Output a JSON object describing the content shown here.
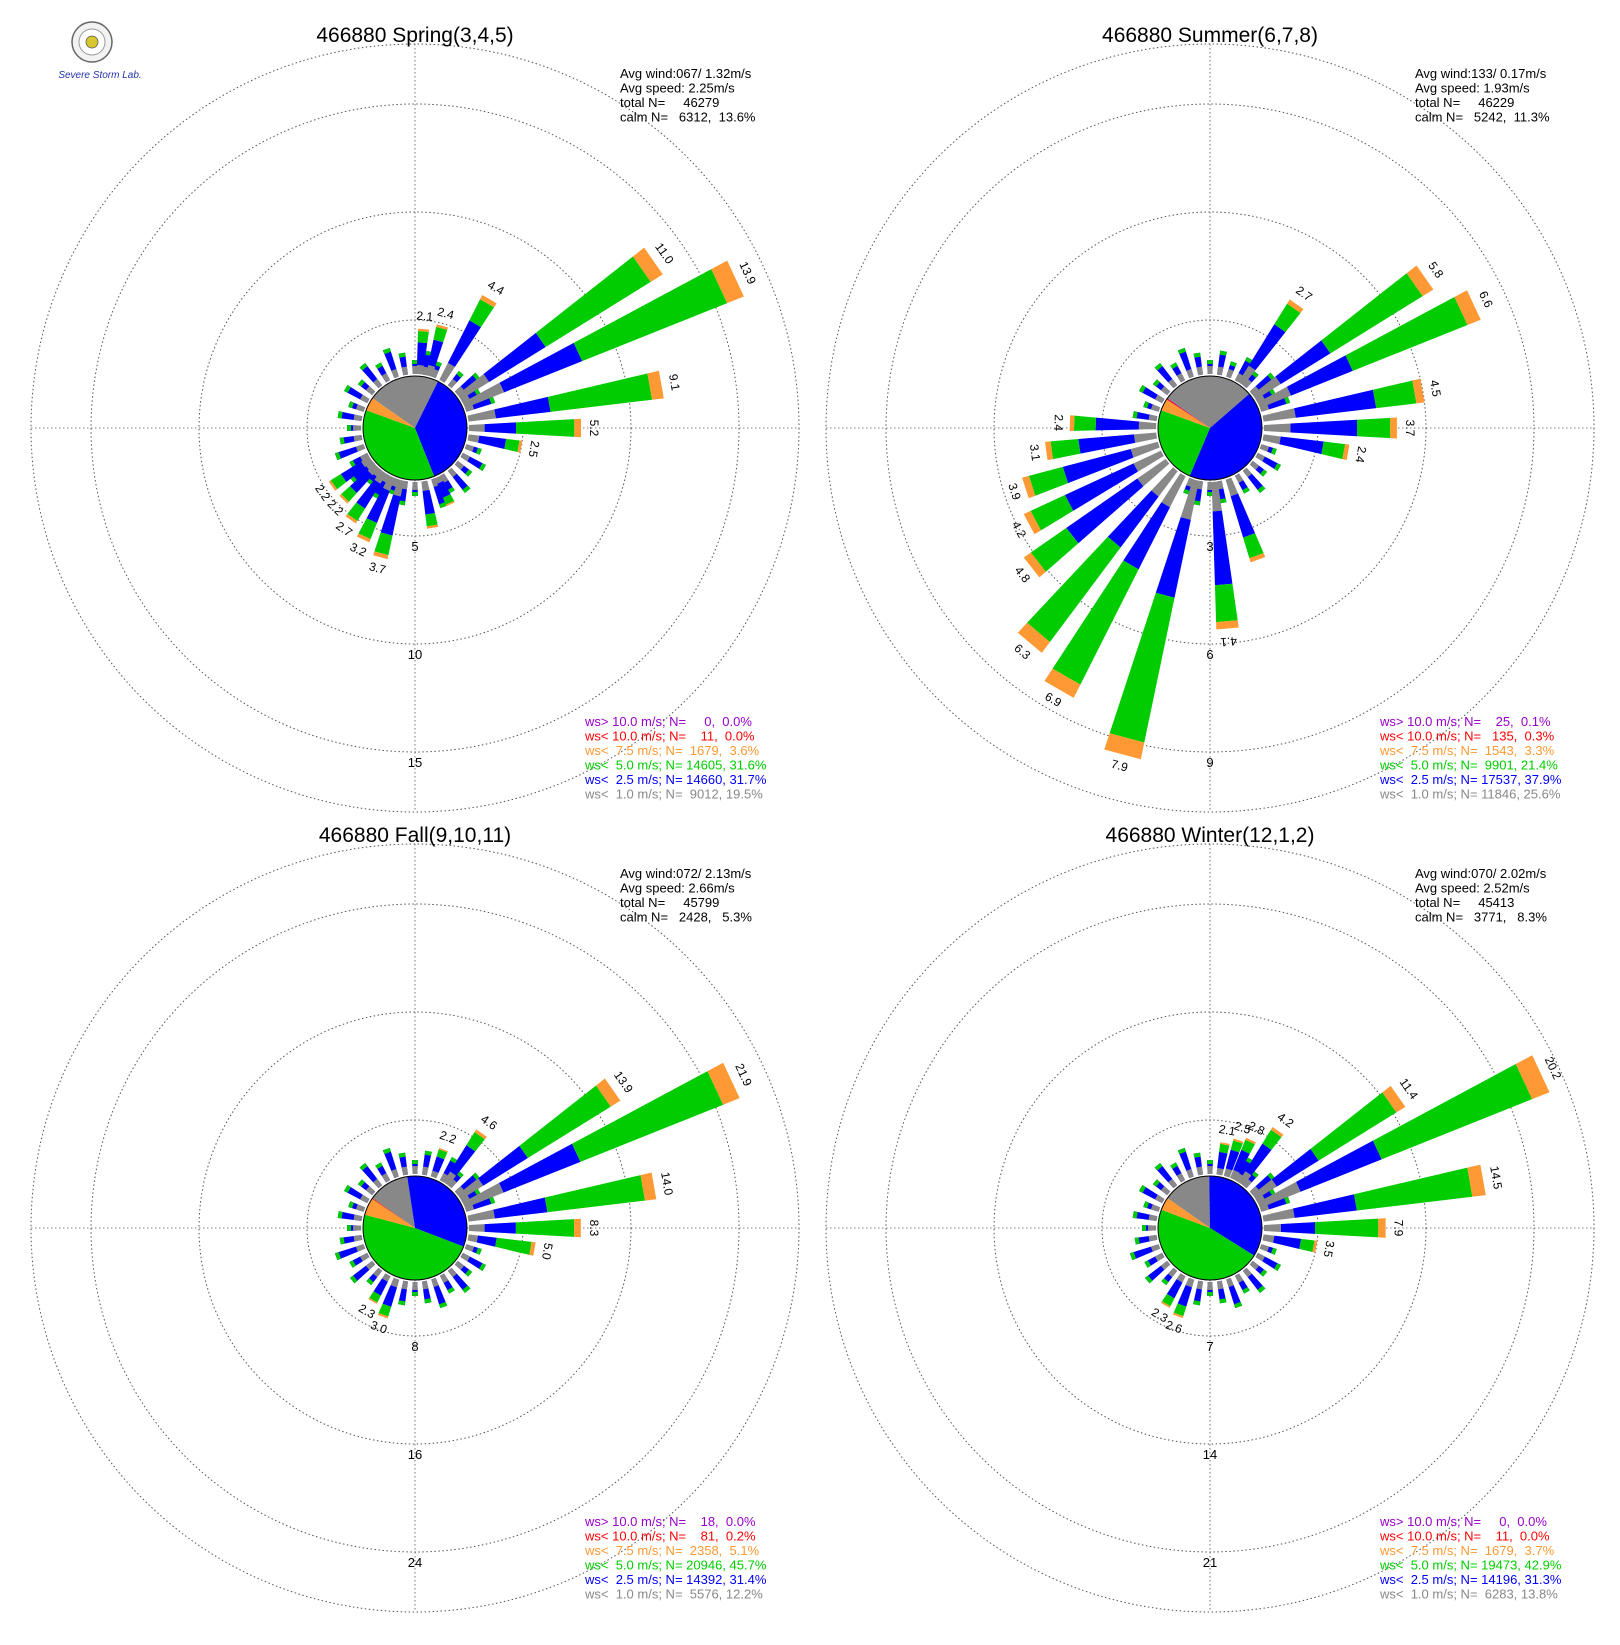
{
  "logo": {
    "text": "Severe Storm Lab."
  },
  "colors": {
    "calm1": "#888888",
    "lt25": "#0000ff",
    "lt50": "#00cc00",
    "lt75": "#ff9933",
    "lt100": "#ff0000",
    "gt100": "#9900cc"
  },
  "chart_data": [
    {
      "type": "wind-rose",
      "title": "466880 Spring(3,4,5)",
      "stats": [
        "Avg wind:067/ 1.32m/s",
        "Avg speed: 2.25m/s",
        "total N=     46279",
        "calm N=   6312,  13.6%"
      ],
      "ring_labels": [
        "5",
        "10",
        "15"
      ],
      "max_ring": 15,
      "directions": [
        {
          "dir": 5,
          "total": 2.1
        },
        {
          "dir": 15,
          "total": 2.4
        },
        {
          "dir": 30,
          "total": 4.4
        },
        {
          "dir": 55,
          "total": 11.0
        },
        {
          "dir": 65,
          "total": 13.9
        },
        {
          "dir": 80,
          "total": 9.1
        },
        {
          "dir": 90,
          "total": 5.2
        },
        {
          "dir": 100,
          "total": 2.5
        },
        {
          "dir": 155,
          "total": 1.4
        },
        {
          "dir": 170,
          "total": 2.2
        },
        {
          "dir": 195,
          "total": 3.7
        },
        {
          "dir": 205,
          "total": 3.2
        },
        {
          "dir": 215,
          "total": 2.7
        },
        {
          "dir": 225,
          "total": 2.2
        },
        {
          "dir": 235,
          "total": 2.2
        }
      ],
      "labels": [
        {
          "dir": 5,
          "text": "2.1"
        },
        {
          "dir": 15,
          "text": "2.4"
        },
        {
          "dir": 30,
          "text": "4.4"
        },
        {
          "dir": 55,
          "text": "11.0"
        },
        {
          "dir": 65,
          "text": "13.9"
        },
        {
          "dir": 80,
          "text": "9.1"
        },
        {
          "dir": 90,
          "text": "5.2"
        },
        {
          "dir": 100,
          "text": "2.5"
        },
        {
          "dir": 195,
          "text": "3.7"
        },
        {
          "dir": 205,
          "text": "3.2"
        },
        {
          "dir": 215,
          "text": "2.7"
        },
        {
          "dir": 225,
          "text": "2.2"
        },
        {
          "dir": 235,
          "text": "2.2"
        }
      ],
      "legend": [
        {
          "label": "ws> 10.0 m/s; N=     0,  0.0%",
          "color": "#9900cc"
        },
        {
          "label": "ws< 10.0 m/s; N=    11,  0.0%",
          "color": "#ff0000"
        },
        {
          "label": "ws<  7.5 m/s; N=  1679,  3.6%",
          "color": "#ff9933"
        },
        {
          "label": "ws<  5.0 m/s; N= 14605, 31.6%",
          "color": "#00cc00"
        },
        {
          "label": "ws<  2.5 m/s; N= 14660, 31.7%",
          "color": "#0000ff"
        },
        {
          "label": "ws<  1.0 m/s; N=  9012, 19.5%",
          "color": "#888888"
        }
      ],
      "pie": [
        19.5,
        31.7,
        31.6,
        3.6,
        0.0,
        0.0
      ]
    },
    {
      "type": "wind-rose",
      "title": "466880 Summer(6,7,8)",
      "stats": [
        "Avg wind:133/ 0.17m/s",
        "Avg speed: 1.93m/s",
        "total N=     46229",
        "calm N=   5242,  11.3%"
      ],
      "ring_labels": [
        "3",
        "6",
        "9"
      ],
      "max_ring": 9,
      "directions": [
        {
          "dir": 35,
          "total": 2.7
        },
        {
          "dir": 55,
          "total": 5.8
        },
        {
          "dir": 65,
          "total": 6.6
        },
        {
          "dir": 80,
          "total": 4.5
        },
        {
          "dir": 90,
          "total": 3.7
        },
        {
          "dir": 100,
          "total": 2.4
        },
        {
          "dir": 160,
          "total": 2.4
        },
        {
          "dir": 175,
          "total": 4.1
        },
        {
          "dir": 195,
          "total": 7.9
        },
        {
          "dir": 210,
          "total": 6.9
        },
        {
          "dir": 220,
          "total": 6.3
        },
        {
          "dir": 232,
          "total": 4.8
        },
        {
          "dir": 242,
          "total": 4.2
        },
        {
          "dir": 252,
          "total": 3.9
        },
        {
          "dir": 262,
          "total": 3.1
        },
        {
          "dir": 272,
          "total": 2.4
        }
      ],
      "labels": [
        {
          "dir": 35,
          "text": "2.7"
        },
        {
          "dir": 55,
          "text": "5.8"
        },
        {
          "dir": 65,
          "text": "6.6"
        },
        {
          "dir": 80,
          "text": "4.5"
        },
        {
          "dir": 90,
          "text": "3.7"
        },
        {
          "dir": 100,
          "text": "2.4"
        },
        {
          "dir": 175,
          "text": "4.1"
        },
        {
          "dir": 195,
          "text": "7.9"
        },
        {
          "dir": 210,
          "text": "6.9"
        },
        {
          "dir": 220,
          "text": "6.3"
        },
        {
          "dir": 232,
          "text": "4.8"
        },
        {
          "dir": 242,
          "text": "4.2"
        },
        {
          "dir": 252,
          "text": "3.9"
        },
        {
          "dir": 262,
          "text": "3.1"
        },
        {
          "dir": 272,
          "text": "2.4"
        }
      ],
      "legend": [
        {
          "label": "ws> 10.0 m/s; N=    25,  0.1%",
          "color": "#9900cc"
        },
        {
          "label": "ws< 10.0 m/s; N=   135,  0.3%",
          "color": "#ff0000"
        },
        {
          "label": "ws<  7.5 m/s; N=  1543,  3.3%",
          "color": "#ff9933"
        },
        {
          "label": "ws<  5.0 m/s; N=  9901, 21.4%",
          "color": "#00cc00"
        },
        {
          "label": "ws<  2.5 m/s; N= 17537, 37.9%",
          "color": "#0000ff"
        },
        {
          "label": "ws<  1.0 m/s; N= 11846, 25.6%",
          "color": "#888888"
        }
      ],
      "pie": [
        25.6,
        37.9,
        21.4,
        3.3,
        0.3,
        0.1
      ]
    },
    {
      "type": "wind-rose",
      "title": "466880 Fall(9,10,11)",
      "stats": [
        "Avg wind:072/ 2.13m/s",
        "Avg speed: 2.66m/s",
        "total N=     45799",
        "calm N=   2428,   5.3%"
      ],
      "ring_labels": [
        "8",
        "16",
        "24"
      ],
      "max_ring": 24,
      "directions": [
        {
          "dir": 20,
          "total": 2.2
        },
        {
          "dir": 35,
          "total": 4.6
        },
        {
          "dir": 55,
          "total": 13.9
        },
        {
          "dir": 65,
          "total": 21.9
        },
        {
          "dir": 80,
          "total": 14.0
        },
        {
          "dir": 90,
          "total": 8.3
        },
        {
          "dir": 100,
          "total": 5.0
        },
        {
          "dir": 200,
          "total": 3.0
        },
        {
          "dir": 210,
          "total": 2.3
        }
      ],
      "labels": [
        {
          "dir": 20,
          "text": "2.2"
        },
        {
          "dir": 35,
          "text": "4.6"
        },
        {
          "dir": 55,
          "text": "13.9"
        },
        {
          "dir": 65,
          "text": "21.9"
        },
        {
          "dir": 80,
          "text": "14.0"
        },
        {
          "dir": 90,
          "text": "8.3"
        },
        {
          "dir": 100,
          "text": "5.0"
        },
        {
          "dir": 200,
          "text": "3.0"
        },
        {
          "dir": 210,
          "text": "2.3"
        }
      ],
      "legend": [
        {
          "label": "ws> 10.0 m/s; N=    18,  0.0%",
          "color": "#9900cc"
        },
        {
          "label": "ws< 10.0 m/s; N=    81,  0.2%",
          "color": "#ff0000"
        },
        {
          "label": "ws<  7.5 m/s; N=  2358,  5.1%",
          "color": "#ff9933"
        },
        {
          "label": "ws<  5.0 m/s; N= 20946, 45.7%",
          "color": "#00cc00"
        },
        {
          "label": "ws<  2.5 m/s; N= 14392, 31.4%",
          "color": "#0000ff"
        },
        {
          "label": "ws<  1.0 m/s; N=  5576, 12.2%",
          "color": "#888888"
        }
      ],
      "pie": [
        12.2,
        31.4,
        45.7,
        5.1,
        0.2,
        0.0
      ]
    },
    {
      "type": "wind-rose",
      "title": "466880 Winter(12,1,2)",
      "stats": [
        "Avg wind:070/ 2.02m/s",
        "Avg speed: 2.52m/s",
        "total N=     45413",
        "calm N=   3771,   8.3%"
      ],
      "ring_labels": [
        "7",
        "14",
        "21"
      ],
      "max_ring": 21,
      "directions": [
        {
          "dir": 10,
          "total": 2.1
        },
        {
          "dir": 18,
          "total": 2.5
        },
        {
          "dir": 25,
          "total": 2.8
        },
        {
          "dir": 35,
          "total": 4.2
        },
        {
          "dir": 55,
          "total": 11.4
        },
        {
          "dir": 65,
          "total": 20.2
        },
        {
          "dir": 80,
          "total": 14.5
        },
        {
          "dir": 90,
          "total": 7.9
        },
        {
          "dir": 100,
          "total": 3.5
        },
        {
          "dir": 200,
          "total": 2.6
        },
        {
          "dir": 210,
          "total": 2.3
        }
      ],
      "labels": [
        {
          "dir": 10,
          "text": "2.1"
        },
        {
          "dir": 18,
          "text": "2.5"
        },
        {
          "dir": 25,
          "text": "2.8"
        },
        {
          "dir": 35,
          "text": "4.2"
        },
        {
          "dir": 55,
          "text": "11.4"
        },
        {
          "dir": 65,
          "text": "20.2"
        },
        {
          "dir": 80,
          "text": "14.5"
        },
        {
          "dir": 90,
          "text": "7.9"
        },
        {
          "dir": 100,
          "text": "3.5"
        },
        {
          "dir": 200,
          "text": "2.6"
        },
        {
          "dir": 210,
          "text": "2.3"
        }
      ],
      "legend": [
        {
          "label": "ws> 10.0 m/s; N=     0,  0.0%",
          "color": "#9900cc"
        },
        {
          "label": "ws< 10.0 m/s; N=    11,  0.0%",
          "color": "#ff0000"
        },
        {
          "label": "ws<  7.5 m/s; N=  1679,  3.7%",
          "color": "#ff9933"
        },
        {
          "label": "ws<  5.0 m/s; N= 19473, 42.9%",
          "color": "#00cc00"
        },
        {
          "label": "ws<  2.5 m/s; N= 14196, 31.3%",
          "color": "#0000ff"
        },
        {
          "label": "ws<  1.0 m/s; N=  6283, 13.8%",
          "color": "#888888"
        }
      ],
      "pie": [
        13.8,
        31.3,
        42.9,
        3.7,
        0.0,
        0.0
      ]
    }
  ]
}
